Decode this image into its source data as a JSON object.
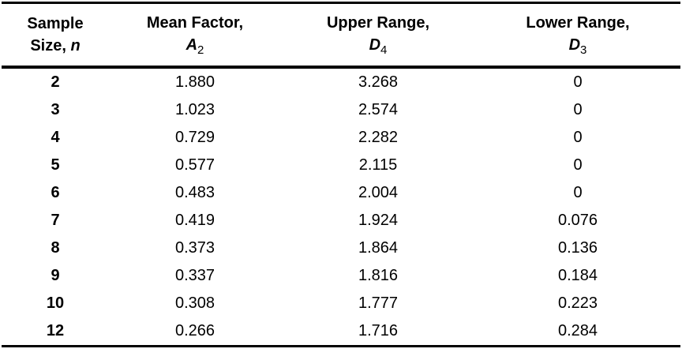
{
  "table": {
    "columns": [
      {
        "title_line1": "Sample",
        "title_line2": "Size,",
        "symbol": "n",
        "subscript": ""
      },
      {
        "title_line1": "Mean Factor,",
        "symbol": "A",
        "subscript": "2"
      },
      {
        "title_line1": "Upper Range,",
        "symbol": "D",
        "subscript": "4"
      },
      {
        "title_line1": "Lower Range,",
        "symbol": "D",
        "subscript": "3"
      }
    ],
    "rows": [
      {
        "n": "2",
        "a2": "1.880",
        "d4": "3.268",
        "d3": "0"
      },
      {
        "n": "3",
        "a2": "1.023",
        "d4": "2.574",
        "d3": "0"
      },
      {
        "n": "4",
        "a2": "0.729",
        "d4": "2.282",
        "d3": "0"
      },
      {
        "n": "5",
        "a2": "0.577",
        "d4": "2.115",
        "d3": "0"
      },
      {
        "n": "6",
        "a2": "0.483",
        "d4": "2.004",
        "d3": "0"
      },
      {
        "n": "7",
        "a2": "0.419",
        "d4": "1.924",
        "d3": "0.076"
      },
      {
        "n": "8",
        "a2": "0.373",
        "d4": "1.864",
        "d3": "0.136"
      },
      {
        "n": "9",
        "a2": "0.337",
        "d4": "1.816",
        "d3": "0.184"
      },
      {
        "n": "10",
        "a2": "0.308",
        "d4": "1.777",
        "d3": "0.223"
      },
      {
        "n": "12",
        "a2": "0.266",
        "d4": "1.716",
        "d3": "0.284"
      }
    ]
  },
  "chart_data": {
    "type": "table",
    "columns": [
      "Sample Size, n",
      "Mean Factor, A2",
      "Upper Range, D4",
      "Lower Range, D3"
    ],
    "rows": [
      [
        2,
        1.88,
        3.268,
        0
      ],
      [
        3,
        1.023,
        2.574,
        0
      ],
      [
        4,
        0.729,
        2.282,
        0
      ],
      [
        5,
        0.577,
        2.115,
        0
      ],
      [
        6,
        0.483,
        2.004,
        0
      ],
      [
        7,
        0.419,
        1.924,
        0.076
      ],
      [
        8,
        0.373,
        1.864,
        0.136
      ],
      [
        9,
        0.337,
        1.816,
        0.184
      ],
      [
        10,
        0.308,
        1.777,
        0.223
      ],
      [
        12,
        0.266,
        1.716,
        0.284
      ]
    ]
  }
}
